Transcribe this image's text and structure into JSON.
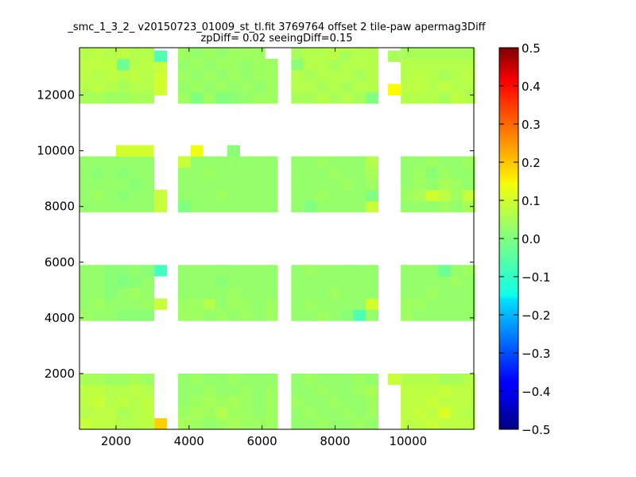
{
  "chart_data": {
    "type": "heatmap",
    "title_lines": [
      "_smc_1_3_2_ v20150723_01009_st_tl.fit 3769764 offset 2 tile-paw apermag3Diff",
      "zpDiff= 0.02 seeingDiff=0.15"
    ],
    "xlabel": "",
    "ylabel": "",
    "xlim": [
      1000,
      11800
    ],
    "ylim": [
      0,
      13700
    ],
    "x_ticks": [
      2000,
      4000,
      6000,
      8000,
      10000
    ],
    "x_tick_labels": [
      "2000",
      "4000",
      "6000",
      "8000",
      "10000"
    ],
    "y_ticks": [
      2000,
      4000,
      6000,
      8000,
      10000,
      12000
    ],
    "y_tick_labels": [
      "2000",
      "4000",
      "6000",
      "8000",
      "10000",
      "12000"
    ],
    "colorbar": {
      "colormap": "jet",
      "vmin": -0.5,
      "vmax": 0.5,
      "ticks": [
        0.5,
        0.4,
        0.3,
        0.2,
        0.1,
        0.0,
        -0.1,
        -0.2,
        -0.3,
        -0.4,
        -0.5
      ],
      "tick_labels": [
        "0.5",
        "0.4",
        "0.3",
        "0.2",
        "0.1",
        "0.0",
        "−0.1",
        "−0.2",
        "−0.3",
        "−0.4",
        "−0.5"
      ]
    },
    "cell_size": [
      340,
      400
    ],
    "detectors": [
      {
        "x0": 1000,
        "y0": 0,
        "cols": 6,
        "rows": 5,
        "values": [
          [
            0.07,
            0.06,
            0.06,
            0.05,
            0.05,
            0.06
          ],
          [
            0.05,
            0.06,
            0.06,
            0.04,
            0.05,
            0.06
          ],
          [
            0.06,
            0.07,
            0.05,
            0.06,
            0.05,
            0.06
          ],
          [
            0.06,
            0.06,
            0.05,
            0.05,
            0.06,
            0.05
          ],
          [
            0.04,
            0.04,
            0.03,
            0.03,
            0.04,
            0.03
          ]
        ]
      },
      {
        "x0": 3700,
        "y0": 0,
        "cols": 8,
        "rows": 5,
        "values": [
          [
            0.04,
            0.03,
            0.02,
            0.03,
            0.04,
            0.03,
            0.03,
            0.03
          ],
          [
            0.03,
            0.04,
            0.03,
            0.05,
            0.03,
            0.03,
            0.02,
            0.03
          ],
          [
            0.02,
            0.03,
            0.04,
            0.03,
            0.04,
            0.03,
            0.02,
            0.03
          ],
          [
            0.02,
            0.02,
            0.03,
            0.02,
            0.02,
            0.03,
            0.02,
            0.03
          ],
          [
            0.02,
            0.03,
            0.02,
            0.02,
            0.03,
            0.02,
            0.02,
            0.02
          ]
        ]
      },
      {
        "x0": 6800,
        "y0": 0,
        "cols": 7,
        "rows": 5,
        "values": [
          [
            0.02,
            0.02,
            0.03,
            0.02,
            0.02,
            0.03,
            0.02
          ],
          [
            0.02,
            0.03,
            0.02,
            0.02,
            0.03,
            0.02,
            0.03
          ],
          [
            0.03,
            0.02,
            0.02,
            0.03,
            0.02,
            0.02,
            0.03
          ],
          [
            0.02,
            0.02,
            0.03,
            0.02,
            0.02,
            0.03,
            0.04
          ],
          [
            0.02,
            0.03,
            0.02,
            0.02,
            0.02,
            0.03,
            0.02
          ]
        ]
      },
      {
        "x0": 9800,
        "y0": 0,
        "cols": 6,
        "rows": 5,
        "values": [
          [
            0.06,
            0.06,
            0.07,
            0.06,
            0.06,
            0.06
          ],
          [
            0.06,
            0.07,
            0.06,
            0.09,
            0.06,
            0.05
          ],
          [
            0.06,
            0.06,
            0.07,
            0.06,
            0.06,
            0.06
          ],
          [
            0.06,
            0.06,
            0.06,
            0.07,
            0.06,
            0.06
          ],
          [
            0.05,
            0.05,
            0.05,
            0.04,
            0.04,
            0.05
          ]
        ]
      },
      {
        "x0": 1000,
        "y0": 3900,
        "cols": 6,
        "rows": 5,
        "values": [
          [
            0.03,
            0.02,
            0.02,
            0.01,
            0.01,
            0.01
          ],
          [
            0.02,
            0.03,
            0.02,
            0.02,
            0.02,
            0.03
          ],
          [
            0.02,
            0.02,
            0.01,
            0.02,
            0.03,
            0.02
          ],
          [
            0.02,
            0.02,
            0.01,
            0.0,
            0.01,
            0.02
          ],
          [
            0.02,
            0.02,
            0.01,
            0.01,
            0.02,
            0.01
          ]
        ]
      },
      {
        "x0": 3700,
        "y0": 3900,
        "cols": 8,
        "rows": 5,
        "values": [
          [
            0.03,
            0.03,
            0.02,
            0.03,
            0.02,
            0.03,
            0.02,
            0.03
          ],
          [
            0.03,
            0.03,
            0.05,
            0.02,
            0.03,
            0.03,
            0.02,
            0.03
          ],
          [
            0.02,
            0.02,
            0.02,
            0.02,
            0.03,
            0.02,
            0.02,
            0.02
          ],
          [
            0.02,
            0.02,
            0.02,
            0.01,
            0.02,
            0.02,
            0.02,
            0.02
          ],
          [
            0.02,
            0.02,
            0.02,
            0.02,
            0.02,
            0.02,
            0.02,
            0.02
          ]
        ]
      },
      {
        "x0": 6800,
        "y0": 3900,
        "cols": 7,
        "rows": 5,
        "values": [
          [
            0.02,
            0.02,
            0.03,
            0.02,
            0.01,
            -0.05,
            0.02
          ],
          [
            0.02,
            0.03,
            0.02,
            0.02,
            0.02,
            0.02,
            0.08
          ],
          [
            0.02,
            0.02,
            0.02,
            0.03,
            0.02,
            0.02,
            0.02
          ],
          [
            0.02,
            0.02,
            0.02,
            0.02,
            0.02,
            0.02,
            0.02
          ],
          [
            0.02,
            0.03,
            0.02,
            0.02,
            0.02,
            0.02,
            0.02
          ]
        ]
      },
      {
        "x0": 9800,
        "y0": 3900,
        "cols": 6,
        "rows": 5,
        "values": [
          [
            0.03,
            0.02,
            0.02,
            0.02,
            0.02,
            0.02
          ],
          [
            0.03,
            0.03,
            0.02,
            0.02,
            0.02,
            0.02
          ],
          [
            0.02,
            0.02,
            0.03,
            0.02,
            0.02,
            0.02
          ],
          [
            0.02,
            0.02,
            0.02,
            0.02,
            0.03,
            0.02
          ],
          [
            0.02,
            0.02,
            0.02,
            -0.02,
            0.02,
            0.03
          ]
        ]
      },
      {
        "x0": 1000,
        "y0": 7800,
        "cols": 6,
        "rows": 5,
        "values": [
          [
            0.02,
            0.02,
            0.02,
            0.02,
            0.02,
            0.02
          ],
          [
            0.02,
            0.03,
            0.02,
            0.01,
            0.02,
            0.02
          ],
          [
            0.02,
            0.02,
            0.02,
            0.02,
            0.01,
            0.02
          ],
          [
            0.02,
            0.01,
            0.02,
            0.01,
            0.02,
            0.02
          ],
          [
            0.02,
            0.02,
            0.02,
            0.02,
            0.02,
            0.02
          ]
        ]
      },
      {
        "x0": 3700,
        "y0": 7800,
        "cols": 8,
        "rows": 5,
        "values": [
          [
            0.0,
            0.02,
            0.02,
            0.02,
            0.02,
            0.02,
            0.02,
            0.02
          ],
          [
            0.02,
            0.02,
            0.02,
            0.03,
            0.02,
            0.02,
            0.02,
            0.02
          ],
          [
            0.02,
            0.02,
            0.02,
            0.02,
            0.02,
            0.02,
            0.02,
            0.02
          ],
          [
            0.02,
            0.02,
            0.03,
            0.02,
            0.02,
            0.02,
            0.02,
            0.02
          ],
          [
            0.07,
            0.02,
            0.02,
            0.02,
            0.02,
            0.02,
            0.02,
            0.02
          ]
        ]
      },
      {
        "x0": 6800,
        "y0": 7800,
        "cols": 7,
        "rows": 5,
        "values": [
          [
            0.02,
            0.0,
            0.02,
            0.02,
            0.02,
            0.02,
            0.07
          ],
          [
            0.02,
            0.02,
            0.03,
            0.02,
            0.02,
            0.02,
            0.0
          ],
          [
            0.02,
            0.02,
            0.02,
            0.02,
            0.03,
            0.02,
            0.03
          ],
          [
            0.02,
            0.02,
            0.02,
            0.03,
            0.02,
            0.02,
            0.04
          ],
          [
            0.02,
            0.02,
            0.03,
            0.02,
            0.02,
            0.02,
            0.05
          ]
        ]
      },
      {
        "x0": 9800,
        "y0": 7800,
        "cols": 6,
        "rows": 5,
        "values": [
          [
            0.02,
            0.02,
            0.02,
            0.03,
            0.02,
            0.04
          ],
          [
            0.03,
            0.04,
            0.08,
            0.06,
            0.03,
            0.07
          ],
          [
            0.02,
            0.03,
            0.02,
            0.04,
            0.03,
            0.02
          ],
          [
            0.02,
            0.03,
            0.01,
            0.03,
            0.02,
            0.02
          ],
          [
            0.02,
            0.02,
            0.03,
            0.02,
            0.02,
            0.03
          ]
        ]
      },
      {
        "x0": 1000,
        "y0": 11700,
        "cols": 6,
        "rows": 5,
        "values": [
          [
            0.04,
            0.04,
            0.03,
            0.03,
            0.04,
            0.04
          ],
          [
            0.05,
            0.06,
            0.05,
            0.04,
            0.05,
            0.05
          ],
          [
            0.06,
            0.05,
            0.06,
            0.05,
            0.06,
            0.05
          ],
          [
            0.06,
            0.06,
            0.06,
            -0.02,
            0.05,
            0.06
          ],
          [
            0.05,
            0.06,
            0.05,
            0.06,
            0.05,
            0.05
          ]
        ]
      },
      {
        "x0": 3700,
        "y0": 11700,
        "cols": 8,
        "rows": 5,
        "values": [
          [
            0.03,
            0.0,
            0.03,
            0.0,
            0.01,
            0.02,
            0.03,
            0.03
          ],
          [
            0.02,
            0.03,
            0.02,
            0.03,
            0.02,
            0.03,
            0.02,
            0.03
          ],
          [
            0.03,
            0.02,
            0.03,
            0.02,
            0.03,
            0.02,
            0.03,
            0.03
          ],
          [
            0.02,
            0.03,
            0.02,
            0.03,
            0.03,
            0.02,
            0.03,
            0.03
          ],
          [
            0.03,
            0.02,
            0.03,
            0.02,
            0.03,
            0.03,
            0.03,
            null
          ]
        ]
      },
      {
        "x0": 6800,
        "y0": 11700,
        "cols": 7,
        "rows": 5,
        "values": [
          [
            0.04,
            0.04,
            0.05,
            0.04,
            0.05,
            0.04,
            0.0
          ],
          [
            0.05,
            0.05,
            0.04,
            0.05,
            0.04,
            0.05,
            0.05
          ],
          [
            0.05,
            0.04,
            0.05,
            0.05,
            0.05,
            0.04,
            0.05
          ],
          [
            0.01,
            0.05,
            0.05,
            0.04,
            0.05,
            0.05,
            0.05
          ],
          [
            0.04,
            0.05,
            0.05,
            0.06,
            0.06,
            0.05,
            0.05
          ]
        ]
      },
      {
        "x0": 9800,
        "y0": 11700,
        "cols": 6,
        "rows": 5,
        "values": [
          [
            0.05,
            0.05,
            0.05,
            0.04,
            0.06,
            0.05
          ],
          [
            0.06,
            0.06,
            0.05,
            0.06,
            0.05,
            0.05
          ],
          [
            0.05,
            0.06,
            0.05,
            0.04,
            0.05,
            0.06
          ],
          [
            0.05,
            0.05,
            0.05,
            0.05,
            0.05,
            0.05
          ],
          [
            0.04,
            0.04,
            0.04,
            0.04,
            0.04,
            0.04
          ]
        ]
      }
    ],
    "extra_cells": [
      {
        "x": 3050,
        "y": 0,
        "value": 0.17
      },
      {
        "x": 3050,
        "y": 4300,
        "value": 0.07
      },
      {
        "x": 3050,
        "y": 5500,
        "value": -0.06
      },
      {
        "x": 3050,
        "y": 7800,
        "value": 0.07
      },
      {
        "x": 3050,
        "y": 8200,
        "value": 0.07
      },
      {
        "x": 3050,
        "y": 12000,
        "value": 0.08
      },
      {
        "x": 3050,
        "y": 12400,
        "value": 0.08
      },
      {
        "x": 3050,
        "y": 12800,
        "value": 0.07
      },
      {
        "x": 3050,
        "y": 13200,
        "value": -0.05
      },
      {
        "x": 3700,
        "y": 9400,
        "value": 0.07
      },
      {
        "x": 4040,
        "y": 9800,
        "value": 0.11
      },
      {
        "x": 5050,
        "y": 9800,
        "value": 0.01
      },
      {
        "x": 2000,
        "y": 9800,
        "value": 0.08
      },
      {
        "x": 2340,
        "y": 9800,
        "value": 0.08
      },
      {
        "x": 2680,
        "y": 9800,
        "value": 0.08
      },
      {
        "x": 9450,
        "y": 1600,
        "value": 0.07
      },
      {
        "x": 9450,
        "y": 12000,
        "value": 0.13
      },
      {
        "x": 9450,
        "y": 13200,
        "value": 0.04
      },
      {
        "x": 8100,
        "y": 13200,
        "value": 0.04
      },
      {
        "x": 8450,
        "y": 13200,
        "value": 0.05
      }
    ]
  }
}
